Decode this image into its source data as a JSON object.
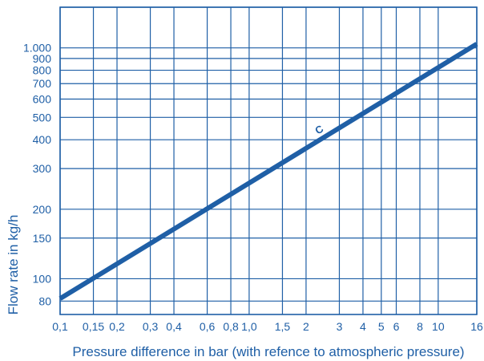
{
  "chart_data": {
    "type": "line",
    "xlabel": "Pressure difference in bar (with refence to atmospheric pressure)",
    "ylabel": "Flow rate in kg/h",
    "xscale": "log",
    "yscale": "log",
    "xlim": [
      0.1,
      16
    ],
    "ylim": [
      70,
      1500
    ],
    "grid": true,
    "x_ticks": [
      {
        "value": 0.1,
        "label": "0,1"
      },
      {
        "value": 0.15,
        "label": "0,15"
      },
      {
        "value": 0.2,
        "label": "0,2"
      },
      {
        "value": 0.3,
        "label": "0,3"
      },
      {
        "value": 0.4,
        "label": "0,4"
      },
      {
        "value": 0.6,
        "label": "0,6"
      },
      {
        "value": 0.8,
        "label": "0,8"
      },
      {
        "value": 1.0,
        "label": "1,0"
      },
      {
        "value": 1.5,
        "label": "1,5"
      },
      {
        "value": 2,
        "label": "2"
      },
      {
        "value": 3,
        "label": "3"
      },
      {
        "value": 4,
        "label": "4"
      },
      {
        "value": 5,
        "label": "5"
      },
      {
        "value": 6,
        "label": "6"
      },
      {
        "value": 8,
        "label": "8"
      },
      {
        "value": 10,
        "label": "10"
      },
      {
        "value": 16,
        "label": "16"
      }
    ],
    "y_ticks": [
      {
        "value": 80,
        "label": "80"
      },
      {
        "value": 100,
        "label": "100"
      },
      {
        "value": 150,
        "label": "150"
      },
      {
        "value": 200,
        "label": "200"
      },
      {
        "value": 300,
        "label": "300"
      },
      {
        "value": 400,
        "label": "400"
      },
      {
        "value": 500,
        "label": "500"
      },
      {
        "value": 600,
        "label": "600"
      },
      {
        "value": 700,
        "label": "700"
      },
      {
        "value": 800,
        "label": "800"
      },
      {
        "value": 900,
        "label": "900"
      },
      {
        "value": 1000,
        "label": "1.000"
      }
    ],
    "y_extra_gridlines": [
      1500
    ],
    "series": [
      {
        "name": "C",
        "color": "#1f5fa6",
        "x": [
          0.1,
          16
        ],
        "y": [
          82,
          1040
        ],
        "label_at_x": 2.4
      }
    ]
  }
}
